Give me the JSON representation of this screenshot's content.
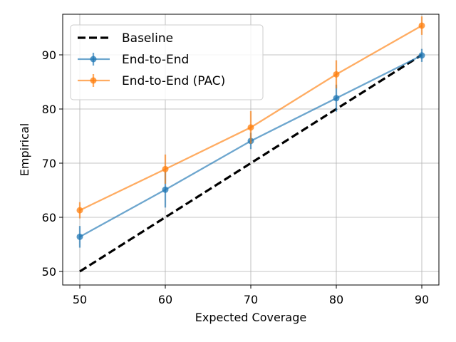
{
  "chart_data": {
    "type": "line",
    "x": [
      50,
      60,
      70,
      80,
      90
    ],
    "xlabel": "Expected Coverage",
    "ylabel": "Empirical",
    "xlim": [
      48,
      92
    ],
    "ylim": [
      47.5,
      97.5
    ],
    "xticks": [
      "50",
      "60",
      "70",
      "80",
      "90"
    ],
    "yticks": [
      "50",
      "60",
      "70",
      "80",
      "90"
    ],
    "grid": true,
    "legend_position": "top-left",
    "series": [
      {
        "name": "Baseline",
        "color": "#000000",
        "style": "dashed",
        "values": [
          50,
          60,
          70,
          80,
          90
        ]
      },
      {
        "name": "End-to-End",
        "color": "#1f77b4",
        "style": "solid-markers-errorbars",
        "values": [
          56.4,
          65.1,
          74.1,
          82.0,
          89.9
        ],
        "errors": [
          2.0,
          3.3,
          1.5,
          2.5,
          1.2
        ]
      },
      {
        "name": "End-to-End (PAC)",
        "color": "#ff7f0e",
        "style": "solid-markers-errorbars",
        "values": [
          61.3,
          68.9,
          76.6,
          86.4,
          95.4
        ],
        "errors": [
          1.5,
          2.7,
          3.0,
          2.6,
          1.7
        ]
      }
    ]
  }
}
